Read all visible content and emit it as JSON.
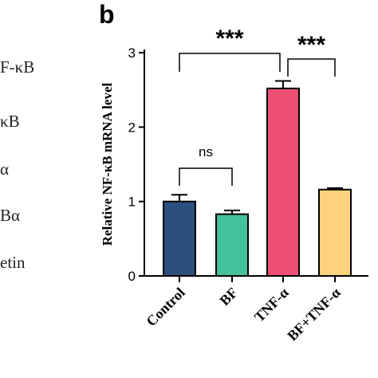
{
  "panel_letter": "b",
  "left_labels": [
    "F-κB",
    "κB",
    "α",
    "Bα",
    "etin"
  ],
  "chart_data": {
    "type": "bar",
    "ylabel": "Relative NF-κB mRNA level",
    "ylim": [
      0,
      3
    ],
    "yticks": [
      "0",
      "1",
      "2",
      "3"
    ],
    "categories": [
      "Control",
      "BF",
      "TNF-α",
      "BF+TNF-α"
    ],
    "values": [
      1.0,
      0.83,
      2.52,
      1.16
    ],
    "errors": [
      0.09,
      0.05,
      0.1,
      0.02
    ],
    "colors": [
      "#2c4f7c",
      "#43c19c",
      "#ec4f73",
      "#fcd27c"
    ],
    "significance": [
      {
        "from": 0,
        "to": 1,
        "label": "ns"
      },
      {
        "from": 0,
        "to": 2,
        "label": "***"
      },
      {
        "from": 2,
        "to": 3,
        "label": "***"
      }
    ]
  }
}
